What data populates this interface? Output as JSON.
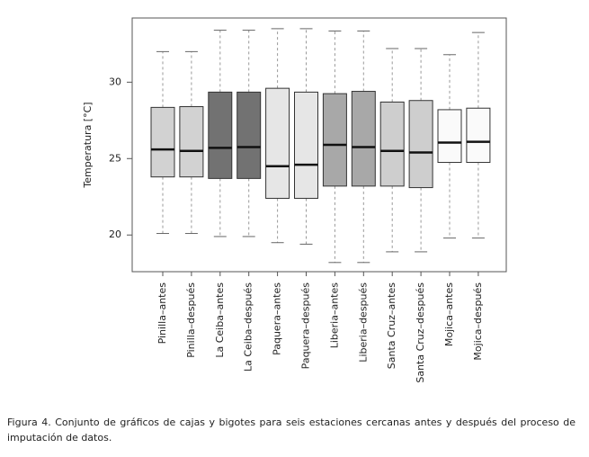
{
  "chart_data": {
    "type": "box",
    "ylabel": "Temperatura [°C]",
    "categories": [
      "Pinilla–antes",
      "Pinilla–después",
      "La Ceiba–antes",
      "La Ceiba–después",
      "Paquera–antes",
      "Paquera–después",
      "Liberia–antes",
      "Liberia–después",
      "Santa Cruz–antes",
      "Santa Cruz–después",
      "Mojica–antes",
      "Mojica–después"
    ],
    "whisker_high": [
      32.0,
      32.0,
      33.4,
      33.4,
      33.5,
      33.5,
      33.35,
      33.35,
      32.2,
      32.2,
      31.8,
      33.25
    ],
    "q3": [
      28.35,
      28.4,
      29.35,
      29.35,
      29.6,
      29.35,
      29.25,
      29.4,
      28.7,
      28.8,
      28.2,
      28.3
    ],
    "median": [
      25.6,
      25.5,
      25.7,
      25.75,
      24.5,
      24.6,
      25.9,
      25.75,
      25.5,
      25.4,
      26.05,
      26.1
    ],
    "q1": [
      23.8,
      23.8,
      23.7,
      23.7,
      22.4,
      22.4,
      23.2,
      23.2,
      23.2,
      23.1,
      24.75,
      24.75
    ],
    "whisker_low": [
      20.1,
      20.1,
      19.9,
      19.9,
      19.5,
      19.4,
      18.2,
      18.2,
      18.9,
      18.9,
      19.8,
      19.8
    ],
    "colors": [
      "#d2d2d2",
      "#d2d2d2",
      "#727272",
      "#727272",
      "#e6e6e6",
      "#e6e6e6",
      "#a8a8a8",
      "#a8a8a8",
      "#cecece",
      "#cecece",
      "#fafafa",
      "#fafafa"
    ],
    "ylim": [
      17.6,
      34.2
    ],
    "yticks": [
      20,
      25,
      30
    ]
  },
  "caption": "Figura 4. Conjunto de gráficos de cajas y bigotes para seis estaciones cercanas antes y después del proceso de imputación de datos."
}
